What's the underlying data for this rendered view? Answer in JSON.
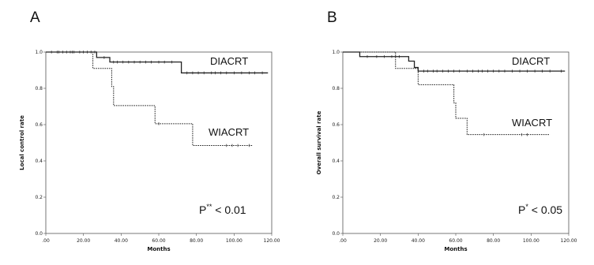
{
  "chart_data": [
    {
      "type": "line",
      "panel_label": "A",
      "xlabel": "Months",
      "ylabel": "Local control rate",
      "xlim": [
        0,
        120
      ],
      "ylim": [
        0,
        1.0
      ],
      "x_ticks": [
        ".00",
        "20.00",
        "40.00",
        "60.00",
        "80.00",
        "100.00",
        "120.00"
      ],
      "y_ticks": [
        "0.0",
        "0.2",
        "0.4",
        "0.6",
        "0.8",
        "1.0"
      ],
      "grid": false,
      "series": [
        {
          "name": "DIACRT",
          "style": "solid",
          "steps": [
            [
              0,
              1.0
            ],
            [
              27,
              0.97
            ],
            [
              34,
              0.945
            ],
            [
              72,
              0.885
            ],
            [
              118,
              0.885
            ]
          ],
          "censors": [
            3,
            6,
            9,
            11,
            13,
            15,
            18,
            20,
            22,
            24,
            26,
            31,
            36,
            38,
            41,
            44,
            47,
            50,
            53,
            56,
            60,
            63,
            67,
            75,
            78,
            81,
            84,
            88,
            90,
            93,
            96,
            100,
            104,
            108,
            111,
            115
          ]
        },
        {
          "name": "WIACRT",
          "style": "dotted",
          "steps": [
            [
              0,
              1.0
            ],
            [
              25,
              0.91
            ],
            [
              35,
              0.81
            ],
            [
              36,
              0.705
            ],
            [
              58,
              0.605
            ],
            [
              78,
              0.485
            ],
            [
              110,
              0.485
            ]
          ],
          "censors": [
            7,
            14,
            60,
            96,
            99,
            102,
            108
          ]
        }
      ],
      "annotations": {
        "p_base": "P",
        "p_sup": "**",
        "p_rest": " < 0.01"
      }
    },
    {
      "type": "line",
      "panel_label": "B",
      "xlabel": "Months",
      "ylabel": "Overall survival rate",
      "xlim": [
        0,
        120
      ],
      "ylim": [
        0,
        1.0
      ],
      "x_ticks": [
        ".00",
        "20.00",
        "40.00",
        "60.00",
        "80.00",
        "100.00",
        "120.00"
      ],
      "y_ticks": [
        "0.0",
        "0.2",
        "0.4",
        "0.6",
        "0.8",
        "1.0"
      ],
      "grid": false,
      "series": [
        {
          "name": "DIACRT",
          "style": "solid",
          "steps": [
            [
              0,
              1.0
            ],
            [
              9,
              0.975
            ],
            [
              35,
              0.95
            ],
            [
              38,
              0.915
            ],
            [
              40,
              0.895
            ],
            [
              118,
              0.895
            ]
          ],
          "censors": [
            13,
            18,
            22,
            26,
            30,
            40,
            43,
            45,
            48,
            50,
            53,
            56,
            59,
            62,
            66,
            69,
            72,
            74,
            77,
            80,
            83,
            86,
            90,
            94,
            98,
            102,
            106,
            110,
            116
          ]
        },
        {
          "name": "WIACRT",
          "style": "dotted",
          "steps": [
            [
              0,
              1.0
            ],
            [
              28,
              0.91
            ],
            [
              40,
              0.82
            ],
            [
              59,
              0.72
            ],
            [
              60,
              0.635
            ],
            [
              66,
              0.545
            ],
            [
              110,
              0.545
            ]
          ],
          "censors": [
            75,
            95,
            98
          ]
        }
      ],
      "annotations": {
        "p_base": "P",
        "p_sup": "*",
        "p_rest": " < 0.05"
      }
    }
  ]
}
